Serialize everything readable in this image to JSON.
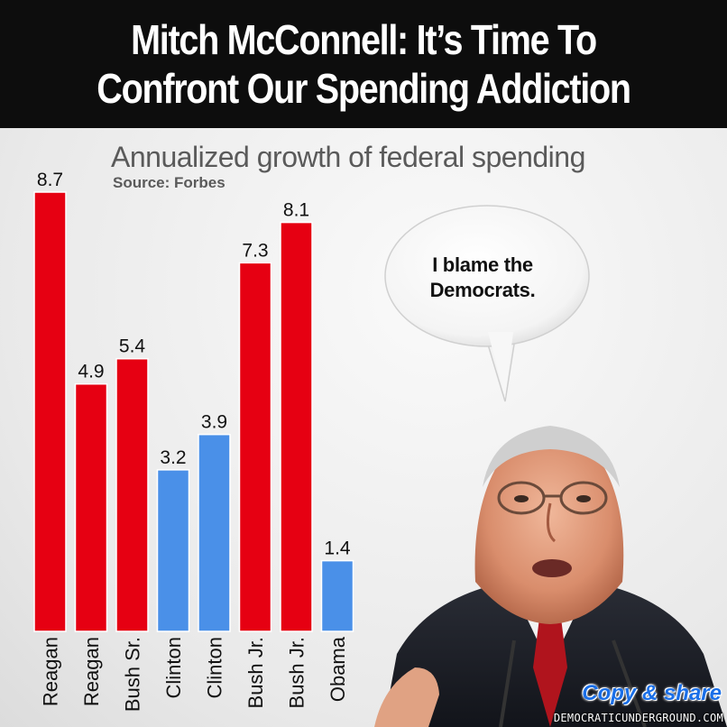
{
  "header": {
    "line1": "Mitch McConnell: It’s Time To",
    "line2": "Confront Our Spending Addiction"
  },
  "chart_data": {
    "type": "bar",
    "title": "Annualized growth of federal spending",
    "subtitle": "Source: Forbes",
    "categories": [
      "Reagan",
      "Reagan",
      "Bush Sr.",
      "Clinton",
      "Clinton",
      "Bush Jr.",
      "Bush Jr.",
      "Obama"
    ],
    "values": [
      8.7,
      4.9,
      5.4,
      3.2,
      3.9,
      7.3,
      8.1,
      1.4
    ],
    "value_labels": [
      "8.7",
      "4.9",
      "5.4",
      "3.2",
      "3.9",
      "7.3",
      "8.1",
      "1.4"
    ],
    "party_colors": [
      "#e60012",
      "#e60012",
      "#e60012",
      "#4a90e8",
      "#4a90e8",
      "#e60012",
      "#e60012",
      "#4a90e8"
    ],
    "ylim": [
      0,
      8.7
    ],
    "grid": false,
    "legend": "none"
  },
  "speech_bubble": {
    "text": "I blame the Democrats."
  },
  "badge": {
    "copy_share": "Copy & share"
  },
  "watermark": {
    "text": "DEMOCRATICUNDERGROUND.COM"
  }
}
